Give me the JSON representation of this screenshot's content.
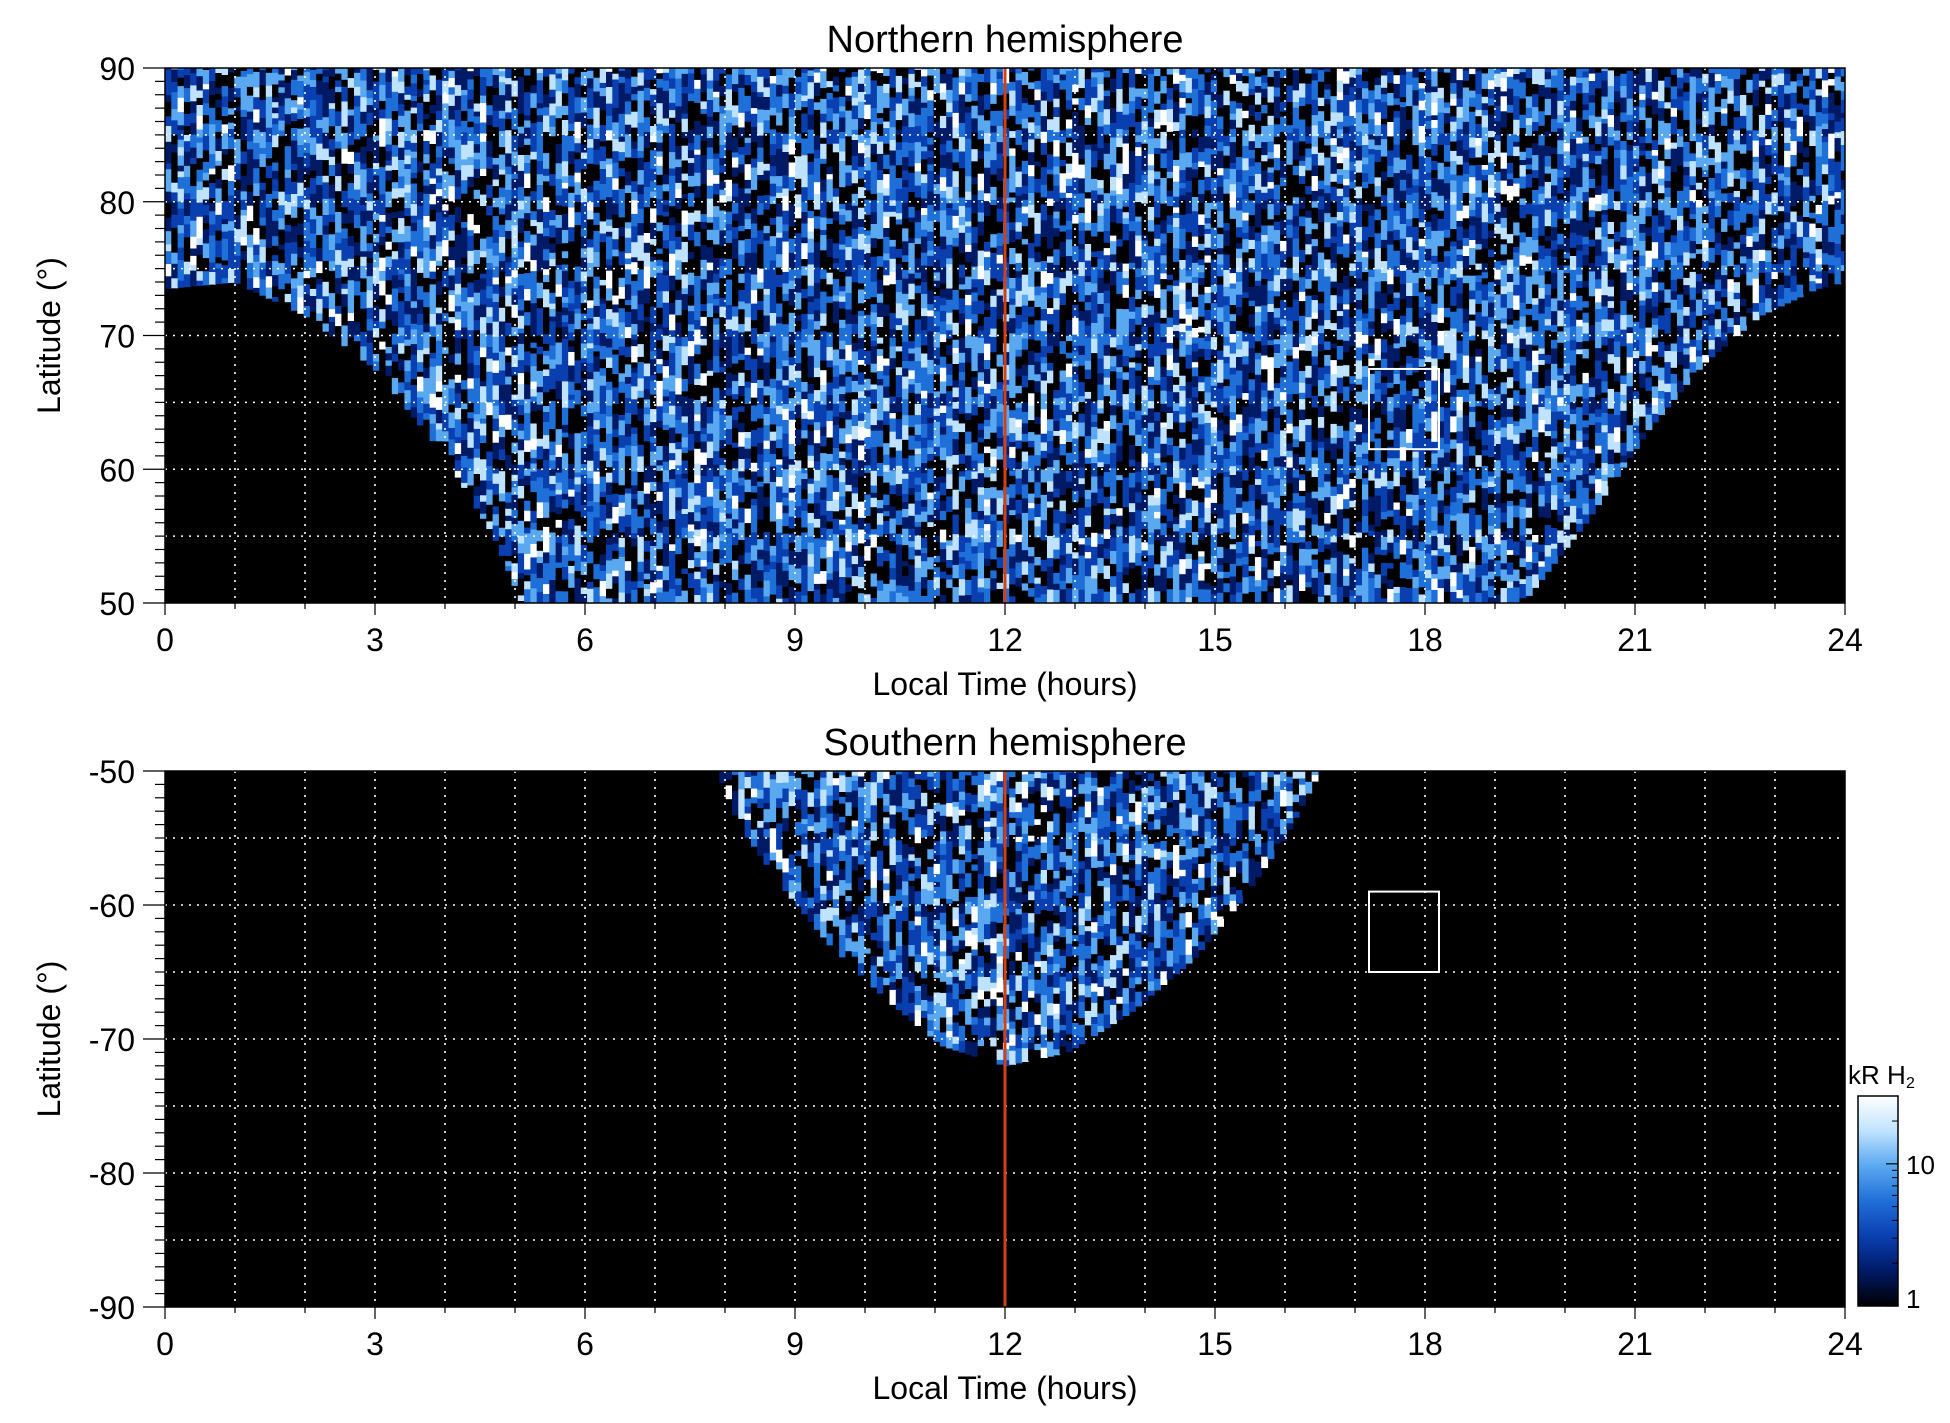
{
  "colors": {
    "background": "#000000",
    "grid": "#ffffff",
    "noon_line": "#d2401a",
    "box": "#ffffff",
    "colormap": [
      "#000000",
      "#001a66",
      "#0a3fb0",
      "#1f6fd8",
      "#5aa8f0",
      "#bfe3ff",
      "#ffffff"
    ]
  },
  "colorbar": {
    "unit_label": "kR H",
    "unit_subscript": "2",
    "scale": "log",
    "range": [
      1,
      30
    ],
    "ticks": [
      {
        "value": 1,
        "label": "1"
      },
      {
        "value": 10,
        "label": "10"
      }
    ]
  },
  "chart_data": [
    {
      "type": "heatmap",
      "title": "Northern hemisphere",
      "xlabel": "Local Time (hours)",
      "ylabel": "Latitude (°)",
      "xlim": [
        0,
        24
      ],
      "ylim": [
        50,
        90
      ],
      "xticks": [
        0,
        3,
        6,
        9,
        12,
        15,
        18,
        21,
        24
      ],
      "xtick_labels": [
        "0",
        "3",
        "6",
        "9",
        "12",
        "15",
        "18",
        "21",
        "24"
      ],
      "yticks": [
        50,
        60,
        70,
        80,
        90
      ],
      "ytick_labels": [
        "50",
        "60",
        "70",
        "80",
        "90"
      ],
      "grid": true,
      "grid_x_step_hours": 1,
      "grid_y_step_deg": 5,
      "reference_line_x": 12,
      "highlight_box": {
        "x": [
          17.2,
          18.2
        ],
        "lat": [
          61.5,
          67.5
        ]
      },
      "coverage_boundary": [
        [
          0,
          73.5
        ],
        [
          1,
          74
        ],
        [
          2,
          71.5
        ],
        [
          3,
          67.5
        ],
        [
          4,
          61
        ],
        [
          4.7,
          55
        ],
        [
          5.1,
          50
        ],
        [
          19.4,
          50
        ],
        [
          20.3,
          56
        ],
        [
          21.2,
          63
        ],
        [
          22,
          68
        ],
        [
          22.8,
          71.5
        ],
        [
          23.6,
          73.5
        ],
        [
          24,
          74
        ]
      ]
    },
    {
      "type": "heatmap",
      "title": "Southern hemisphere",
      "xlabel": "Local Time (hours)",
      "ylabel": "Latitude (°)",
      "xlim": [
        0,
        24
      ],
      "ylim": [
        -90,
        -50
      ],
      "xticks": [
        0,
        3,
        6,
        9,
        12,
        15,
        18,
        21,
        24
      ],
      "xtick_labels": [
        "0",
        "3",
        "6",
        "9",
        "12",
        "15",
        "18",
        "21",
        "24"
      ],
      "yticks": [
        -90,
        -80,
        -70,
        -60,
        -50
      ],
      "ytick_labels": [
        "-90",
        "-80",
        "-70",
        "-60",
        "-50"
      ],
      "grid": true,
      "grid_x_step_hours": 1,
      "grid_y_step_deg": 5,
      "reference_line_x": 12,
      "highlight_box": {
        "x": [
          17.2,
          18.2
        ],
        "lat": [
          -65,
          -59
        ]
      },
      "coverage_boundary": [
        [
          7.9,
          -50
        ],
        [
          8.2,
          -54
        ],
        [
          8.8,
          -58.5
        ],
        [
          9.5,
          -63
        ],
        [
          10.3,
          -67
        ],
        [
          11.1,
          -70.5
        ],
        [
          12,
          -72
        ],
        [
          12.9,
          -71
        ],
        [
          13.8,
          -68
        ],
        [
          14.7,
          -64
        ],
        [
          15.4,
          -59.5
        ],
        [
          16,
          -55
        ],
        [
          16.5,
          -50
        ]
      ]
    }
  ]
}
